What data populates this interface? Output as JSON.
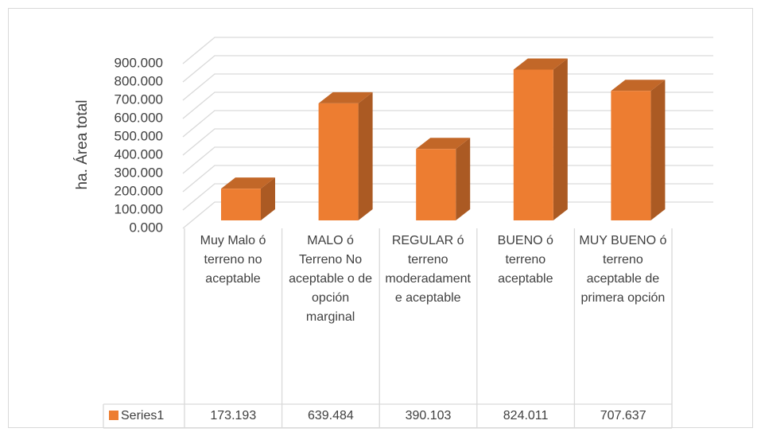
{
  "chart_data": {
    "type": "bar3d",
    "y_label": "ha. Área total",
    "categories": [
      "Muy Malo ó terreno no aceptable",
      "MALO ó Terreno No aceptable o de opción marginal",
      "REGULAR ó terreno moderadamente aceptable",
      "BUENO ó terreno aceptable",
      "MUY BUENO ó terreno aceptable de primera opción"
    ],
    "series": [
      {
        "name": "Series1",
        "color": "#ed7d31",
        "values": [
          173.193,
          639.484,
          390.103,
          824.011,
          707.637
        ]
      }
    ],
    "ylim": [
      0,
      900
    ],
    "yticks": [
      {
        "value": 0,
        "label": "0.000"
      },
      {
        "value": 100,
        "label": "100.000"
      },
      {
        "value": 200,
        "label": "200.000"
      },
      {
        "value": 300,
        "label": "300.000"
      },
      {
        "value": 400,
        "label": "400.000"
      },
      {
        "value": 500,
        "label": "500.000"
      },
      {
        "value": 600,
        "label": "600.000"
      },
      {
        "value": 700,
        "label": "700.000"
      },
      {
        "value": 800,
        "label": "800.000"
      },
      {
        "value": 900,
        "label": "900.000"
      }
    ],
    "grid": true,
    "data_table": true
  }
}
